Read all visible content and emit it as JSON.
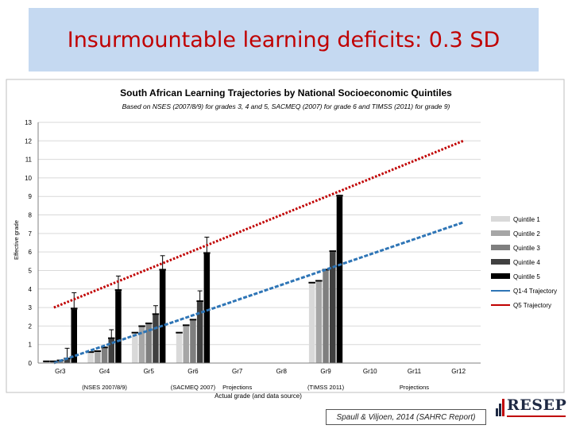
{
  "slide_title": "Insurmountable learning deficits: 0.3 SD",
  "citation": "Spaull & Viljoen, 2014 (SAHRC Report)",
  "logo_text": "RESEP",
  "colors": {
    "q1": "#d9d9d9",
    "q2": "#a6a6a6",
    "q3": "#7f7f7f",
    "q4": "#404040",
    "q5": "#000000",
    "q14_trajectory": "#2e75b6",
    "q5_trajectory": "#c00000",
    "title_box": "#c5d9f1"
  },
  "chart_data": {
    "type": "bar",
    "title": "South African Learning Trajectories by National Socioeconomic Quintiles",
    "subtitle": "Based on NSES (2007/8/9) for grades 3, 4 and 5, SACMEQ (2007) for grade 6 and TIMSS (2011) for grade 9)",
    "ylabel": "Effective grade",
    "xlabel": "Actual grade (and data source)",
    "ylim": [
      0,
      13
    ],
    "yticks": [
      0,
      1,
      2,
      3,
      4,
      5,
      6,
      7,
      8,
      9,
      10,
      11,
      12,
      13
    ],
    "categories": [
      "Gr3",
      "Gr4",
      "Gr5",
      "Gr6",
      "Gr7",
      "Gr8",
      "Gr9",
      "Gr10",
      "Gr11",
      "Gr12"
    ],
    "category_sublabels": [
      "",
      "(NSES 2007/8/9)",
      "",
      "(SACMEQ 2007)",
      "Projections",
      "",
      "(TIMSS 2011)",
      "",
      "Projections",
      ""
    ],
    "legend_position": "right",
    "series": [
      {
        "name": "Quintile 1",
        "values": [
          0.05,
          0.55,
          1.6,
          1.6,
          null,
          null,
          4.3,
          null,
          null,
          null
        ]
      },
      {
        "name": "Quintile 2",
        "values": [
          0.05,
          0.6,
          1.95,
          2.0,
          null,
          null,
          4.4,
          null,
          null,
          null
        ]
      },
      {
        "name": "Quintile 3",
        "values": [
          0.1,
          0.8,
          2.1,
          2.3,
          null,
          null,
          5.0,
          null,
          null,
          null
        ]
      },
      {
        "name": "Quintile 4",
        "values": [
          0.2,
          1.3,
          2.6,
          3.3,
          null,
          null,
          6.0,
          null,
          null,
          null
        ]
      },
      {
        "name": "Quintile 5",
        "values": [
          2.9,
          3.9,
          5.0,
          5.9,
          null,
          null,
          9.0,
          null,
          null,
          null
        ]
      }
    ],
    "error_bars": {
      "Quintile 4": [
        0.8,
        1.8,
        3.1,
        3.9,
        null,
        null,
        null,
        null,
        null,
        null
      ],
      "Quintile 5": [
        3.8,
        4.7,
        5.8,
        6.8,
        null,
        null,
        null,
        null,
        null,
        null
      ]
    },
    "trajectories": [
      {
        "name": "Q1-4 Trajectory",
        "x_start": "Gr3",
        "x_end": "Gr12",
        "y_start": 0.0,
        "y_end": 7.6
      },
      {
        "name": "Q5 Trajectory",
        "x_start": "Gr3",
        "x_end": "Gr12",
        "y_start": 3.0,
        "y_end": 12.0
      }
    ],
    "grid": true
  }
}
